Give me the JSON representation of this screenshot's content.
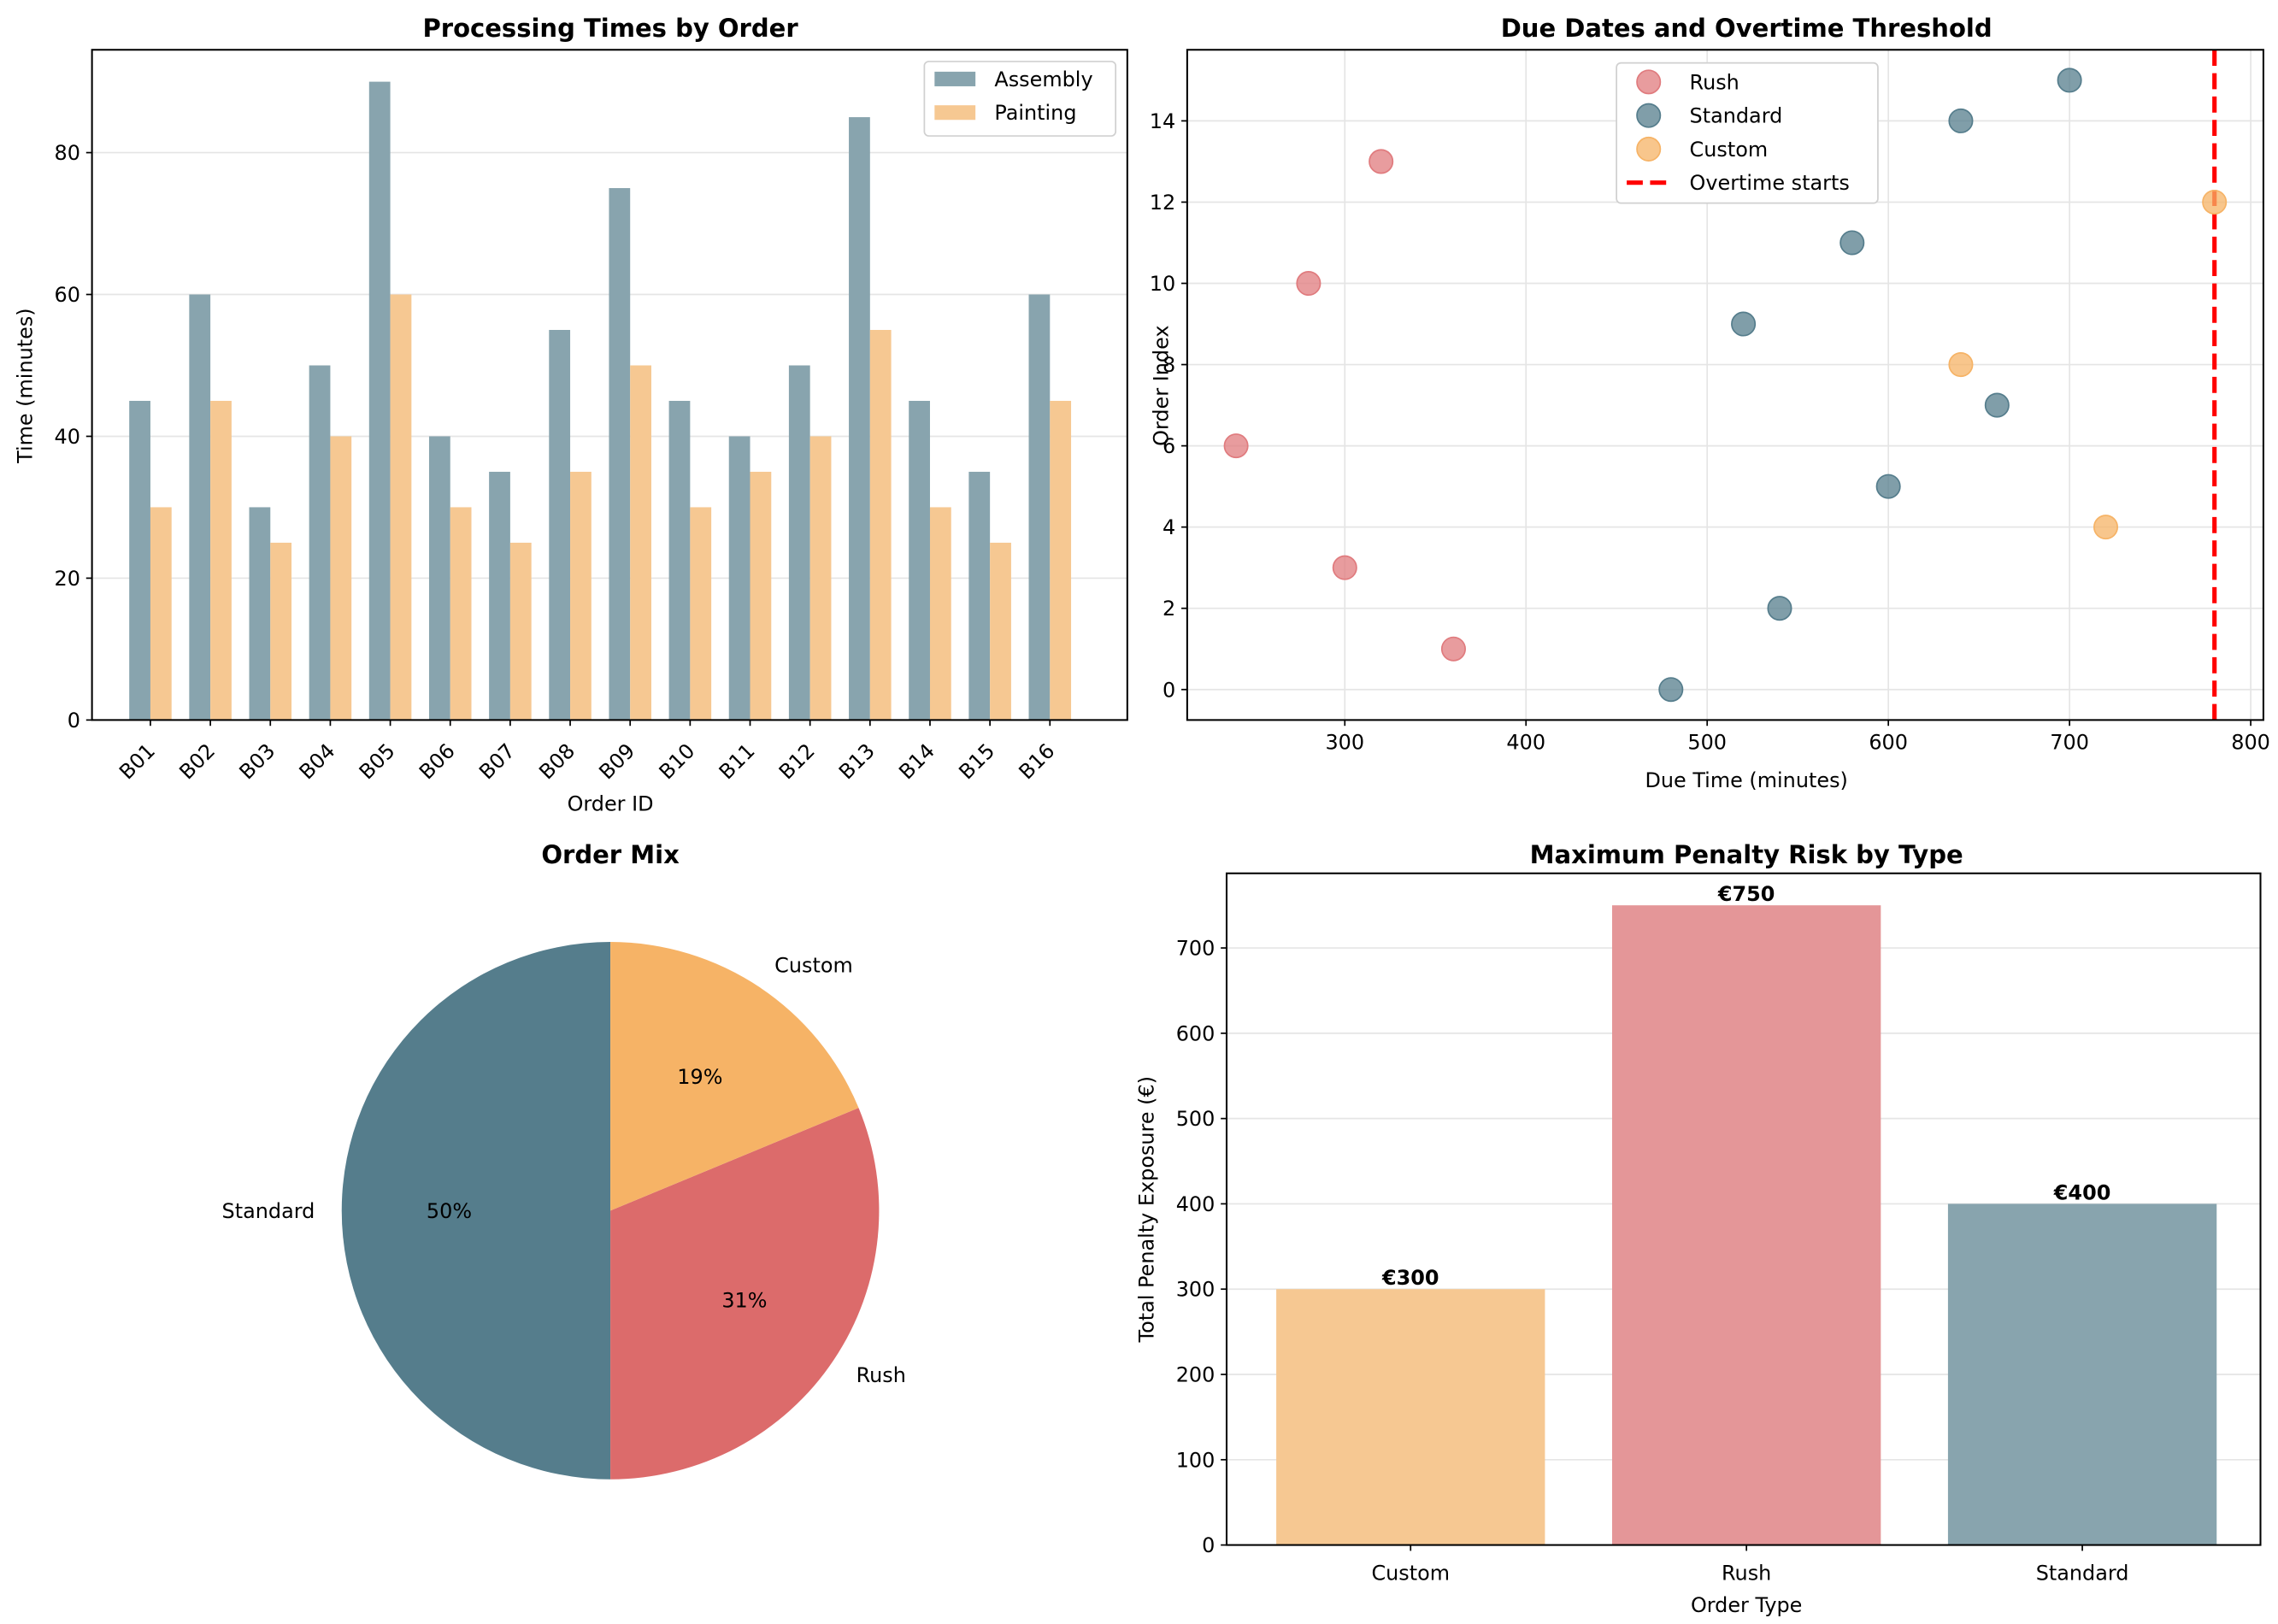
{
  "chart_data": [
    {
      "type": "bar",
      "title": "Processing Times by Order",
      "xlabel": "Order ID",
      "ylabel": "Time (minutes)",
      "ylim": [
        0,
        94.5
      ],
      "yticks": [
        0,
        20,
        40,
        60,
        80
      ],
      "grid": "y",
      "legend_position": "top-right",
      "categories": [
        "B01",
        "B02",
        "B03",
        "B04",
        "B05",
        "B06",
        "B07",
        "B08",
        "B09",
        "B10",
        "B11",
        "B12",
        "B13",
        "B14",
        "B15",
        "B16"
      ],
      "series": [
        {
          "name": "Assembly",
          "color": "#88a4ae",
          "values": [
            45,
            60,
            30,
            50,
            90,
            40,
            35,
            55,
            75,
            45,
            40,
            50,
            85,
            45,
            35,
            60
          ]
        },
        {
          "name": "Painting",
          "color": "#f6c892",
          "values": [
            30,
            45,
            25,
            40,
            60,
            30,
            25,
            35,
            50,
            30,
            35,
            40,
            55,
            30,
            25,
            45
          ]
        }
      ]
    },
    {
      "type": "scatter",
      "title": "Due Dates and Overtime Threshold",
      "xlabel": "Due Time (minutes)",
      "ylabel": "Order Index",
      "xlim": [
        213,
        807
      ],
      "ylim": [
        -0.75,
        15.75
      ],
      "xticks": [
        300,
        400,
        500,
        600,
        700,
        800
      ],
      "yticks": [
        0,
        2,
        4,
        6,
        8,
        10,
        12,
        14
      ],
      "grid": "both",
      "legend_position": "top-center",
      "series": [
        {
          "name": "Rush",
          "color": "#e07b7e",
          "points": [
            [
              240,
              6
            ],
            [
              280,
              10
            ],
            [
              300,
              3
            ],
            [
              320,
              13
            ],
            [
              360,
              1
            ]
          ]
        },
        {
          "name": "Standard",
          "color": "#557d8c",
          "points": [
            [
              480,
              0
            ],
            [
              520,
              9
            ],
            [
              540,
              2
            ],
            [
              580,
              11
            ],
            [
              600,
              5
            ],
            [
              640,
              14
            ],
            [
              660,
              7
            ],
            [
              700,
              15
            ]
          ]
        },
        {
          "name": "Custom",
          "color": "#f6b366",
          "points": [
            [
              640,
              8
            ],
            [
              720,
              4
            ],
            [
              780,
              12
            ]
          ]
        }
      ],
      "annotations": [
        {
          "type": "vline",
          "x": 780,
          "label": "Overtime starts",
          "color": "#ff0000",
          "style": "dashed"
        }
      ]
    },
    {
      "type": "pie",
      "title": "Order Mix",
      "slices": [
        {
          "label": "Standard",
          "value": 50,
          "pct_label": "50%",
          "color": "#557d8c"
        },
        {
          "label": "Rush",
          "value": 31.25,
          "pct_label": "31%",
          "color": "#dc6b6b"
        },
        {
          "label": "Custom",
          "value": 18.75,
          "pct_label": "19%",
          "color": "#f6b366"
        }
      ]
    },
    {
      "type": "bar",
      "title": "Maximum Penalty Risk by Type",
      "xlabel": "Order Type",
      "ylabel": "Total Penalty Exposure (€)",
      "ylim": [
        0,
        787.5
      ],
      "yticks": [
        0,
        100,
        200,
        300,
        400,
        500,
        600,
        700
      ],
      "grid": "y",
      "categories": [
        "Custom",
        "Rush",
        "Standard"
      ],
      "values": [
        300,
        750,
        400
      ],
      "data_labels": [
        "€300",
        "€750",
        "€400"
      ],
      "colors": [
        "#f6c892",
        "#e49698",
        "#88a4ae"
      ]
    }
  ]
}
